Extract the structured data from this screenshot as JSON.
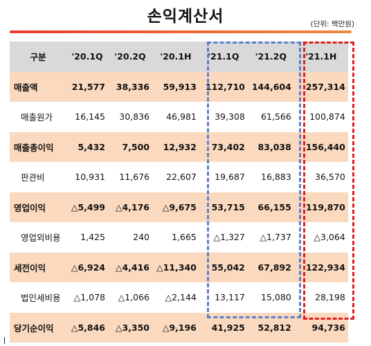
{
  "title": "손익계산서",
  "unit": "(단위: 백만원)",
  "headers": [
    "구분",
    "'20.1Q",
    "'20.2Q",
    "'20.1H",
    "'21.1Q",
    "'21.2Q",
    "'21.1H"
  ],
  "rows": [
    {
      "label": "매출액",
      "highlight": true,
      "values": [
        "21,577",
        "38,336",
        "59,913",
        "112,710",
        "144,604",
        "257,314"
      ]
    },
    {
      "label": "매출원가",
      "highlight": false,
      "values": [
        "16,145",
        "30,836",
        "46,981",
        "39,308",
        "61,566",
        "100,874"
      ]
    },
    {
      "label": "매출총이익",
      "highlight": true,
      "values": [
        "5,432",
        "7,500",
        "12,932",
        "73,402",
        "83,038",
        "156,440"
      ]
    },
    {
      "label": "판관비",
      "highlight": false,
      "values": [
        "10,931",
        "11,676",
        "22,607",
        "19,687",
        "16,883",
        "36,570"
      ]
    },
    {
      "label": "영업이익",
      "highlight": true,
      "values": [
        "△5,499",
        "△4,176",
        "△9,675",
        "53,715",
        "66,155",
        "119,870"
      ]
    },
    {
      "label": "영업외비용",
      "highlight": false,
      "values": [
        "1,425",
        "240",
        "1,665",
        "△1,327",
        "△1,737",
        "△3,064"
      ]
    },
    {
      "label": "세전이익",
      "highlight": true,
      "values": [
        "△6,924",
        "△4,416",
        "△11,340",
        "55,042",
        "67,892",
        "122,934"
      ]
    },
    {
      "label": "법인세비용",
      "highlight": false,
      "values": [
        "△1,078",
        "△1,066",
        "△2,144",
        "13,117",
        "15,080",
        "28,198"
      ]
    },
    {
      "label": "당기순이익",
      "highlight": true,
      "values": [
        "△5,846",
        "△3,350",
        "△9,196",
        "41,925",
        "52,812",
        "94,736"
      ]
    }
  ],
  "colors": {
    "accent": "#e23a2f",
    "highlight_row": "#fbd9be",
    "header": "#d9d9d9",
    "blue_box": "#5b7fd0",
    "red_box": "#e11e1e"
  }
}
